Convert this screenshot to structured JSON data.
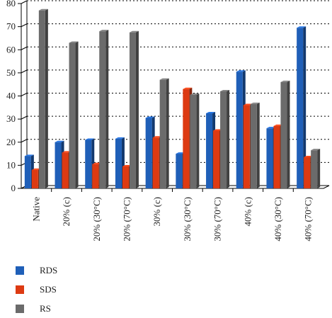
{
  "chart_data": {
    "type": "bar",
    "categories": [
      "Native",
      "20% (c)",
      "20% (30°C)",
      "20% (70°C)",
      "30% (c)",
      "30% (30°C)",
      "30% (70°C)",
      "40% (c)",
      "40% (30°C)",
      "40% (70°C)"
    ],
    "series": [
      {
        "name": "RDS",
        "color": "#1f5fb8",
        "values": [
          14,
          20,
          21,
          21.5,
          30.5,
          15,
          32.5,
          50.5,
          26,
          69.5
        ]
      },
      {
        "name": "SDS",
        "color": "#dd3a12",
        "values": [
          8,
          15.5,
          10.5,
          9.5,
          22,
          43,
          25,
          36,
          27,
          13.5
        ]
      },
      {
        "name": "RS",
        "color": "#6b6b6b",
        "values": [
          77,
          63,
          68,
          67.5,
          47,
          40.5,
          42,
          36.5,
          46,
          16.5
        ]
      }
    ],
    "ylim": [
      0,
      80
    ],
    "yticks": [
      0,
      10,
      20,
      30,
      40,
      50,
      60,
      70,
      80
    ],
    "grid": "horizontal dashed",
    "legend_position": "bottom-left"
  }
}
